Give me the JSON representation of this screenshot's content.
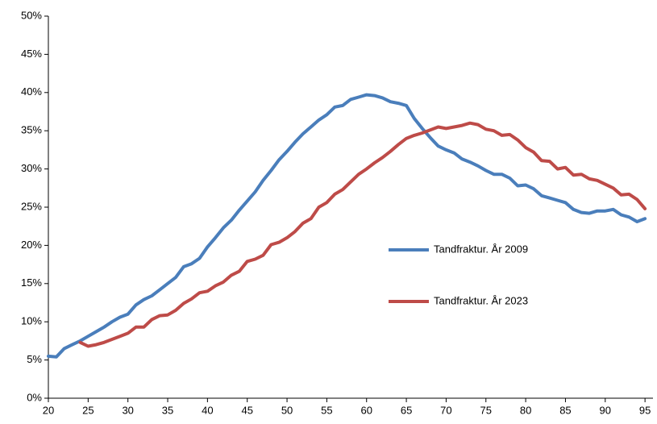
{
  "chart_data": {
    "type": "line",
    "x": [
      20,
      21,
      22,
      23,
      24,
      25,
      26,
      27,
      28,
      29,
      30,
      31,
      32,
      33,
      34,
      35,
      36,
      37,
      38,
      39,
      40,
      41,
      42,
      43,
      44,
      45,
      46,
      47,
      48,
      49,
      50,
      51,
      52,
      53,
      54,
      55,
      56,
      57,
      58,
      59,
      60,
      61,
      62,
      63,
      64,
      65,
      66,
      67,
      68,
      69,
      70,
      71,
      72,
      73,
      74,
      75,
      76,
      77,
      78,
      79,
      80,
      81,
      82,
      83,
      84,
      85,
      86,
      87,
      88,
      89,
      90,
      91,
      92,
      93,
      94,
      95
    ],
    "series": [
      {
        "name": "Tandfraktur. År 2009",
        "color": "#4a7ebb",
        "values": [
          5.5,
          5.4,
          6.5,
          7.0,
          7.5,
          8.1,
          8.7,
          9.3,
          10.0,
          10.6,
          11.0,
          12.2,
          12.9,
          13.4,
          14.2,
          15.0,
          15.8,
          17.2,
          17.6,
          18.3,
          19.8,
          21.0,
          22.3,
          23.3,
          24.6,
          25.8,
          27.0,
          28.5,
          29.8,
          31.2,
          32.3,
          33.5,
          34.6,
          35.5,
          36.4,
          37.1,
          38.1,
          38.3,
          39.1,
          39.4,
          39.7,
          39.6,
          39.3,
          38.8,
          38.6,
          38.3,
          36.6,
          35.3,
          34.1,
          33.0,
          32.5,
          32.1,
          31.3,
          30.9,
          30.4,
          29.8,
          29.3,
          29.3,
          28.8,
          27.8,
          27.9,
          27.4,
          26.5,
          26.2,
          25.9,
          25.6,
          24.7,
          24.3,
          24.2,
          24.5,
          24.5,
          24.7,
          24.0,
          23.7,
          23.1,
          23.5
        ]
      },
      {
        "name": "Tandfraktur. År 2023",
        "color": "#be4b48",
        "values": [
          null,
          null,
          null,
          null,
          7.3,
          6.8,
          7.0,
          7.3,
          7.7,
          8.1,
          8.5,
          9.3,
          9.3,
          10.3,
          10.8,
          10.9,
          11.5,
          12.4,
          13.0,
          13.8,
          14.0,
          14.7,
          15.2,
          16.1,
          16.6,
          17.9,
          18.2,
          18.7,
          20.1,
          20.4,
          21.0,
          21.8,
          22.9,
          23.5,
          25.0,
          25.6,
          26.7,
          27.3,
          28.3,
          29.3,
          30.0,
          30.8,
          31.5,
          32.3,
          33.2,
          34.0,
          34.4,
          34.7,
          35.1,
          35.5,
          35.3,
          35.5,
          35.7,
          36.0,
          35.8,
          35.2,
          35.0,
          34.4,
          34.5,
          33.8,
          32.8,
          32.2,
          31.1,
          31.0,
          30.0,
          30.2,
          29.2,
          29.3,
          28.7,
          28.5,
          28.0,
          27.5,
          26.6,
          26.7,
          26.0,
          24.8
        ]
      }
    ],
    "xlim": [
      20,
      96
    ],
    "xticks": [
      20,
      25,
      30,
      35,
      40,
      45,
      50,
      55,
      60,
      65,
      70,
      75,
      80,
      85,
      90,
      95
    ],
    "ylim": [
      0,
      50
    ],
    "yticks": [
      {
        "value": 0,
        "label": "0%"
      },
      {
        "value": 5,
        "label": "5%"
      },
      {
        "value": 10,
        "label": "10%"
      },
      {
        "value": 15,
        "label": "15%"
      },
      {
        "value": 20,
        "label": "20%"
      },
      {
        "value": 25,
        "label": "25%"
      },
      {
        "value": 30,
        "label": "30%"
      },
      {
        "value": 35,
        "label": "35%"
      },
      {
        "value": 40,
        "label": "40%"
      },
      {
        "value": 45,
        "label": "45%"
      },
      {
        "value": 50,
        "label": "50%"
      }
    ],
    "legend": "right"
  }
}
